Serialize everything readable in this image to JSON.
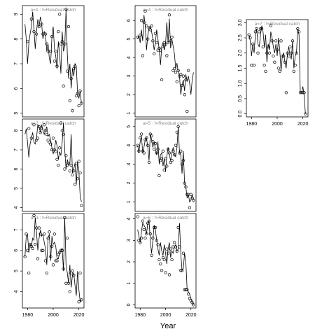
{
  "xlabel": "Year",
  "chart_data": [
    {
      "type": "line",
      "label": "a=1 : f=Residual catch",
      "show_xaxis": false,
      "color": "#000000",
      "x": [
        1978,
        1979,
        1980,
        1981,
        1982,
        1983,
        1984,
        1985,
        1986,
        1987,
        1988,
        1989,
        1990,
        1991,
        1992,
        1993,
        1994,
        1995,
        1996,
        1997,
        1998,
        1999,
        2000,
        2001,
        2002,
        2003,
        2004,
        2005,
        2006,
        2007,
        2008,
        2009,
        2010,
        2011,
        2012,
        2013,
        2014,
        2015,
        2016,
        2017,
        2018,
        2019,
        2020,
        2021,
        2022
      ],
      "xlim": [
        1976,
        2024
      ],
      "xticks": [
        1980,
        2000,
        2020
      ],
      "ylim": [
        4.85,
        9.35
      ],
      "yticks": [
        5,
        6,
        7,
        8,
        9
      ],
      "series": [
        {
          "style": "line",
          "values": [
            8.6,
            8.0,
            7.0,
            7.8,
            8.2,
            8.5,
            9.1,
            8.4,
            7.6,
            8.3,
            8.8,
            8.5,
            8.9,
            8.6,
            8.0,
            8.3,
            8.2,
            7.5,
            7.8,
            7.2,
            7.0,
            8.1,
            8.5,
            7.6,
            7.3,
            6.8,
            7.9,
            7.4,
            6.6,
            8.3,
            7.5,
            7.7,
            9.2,
            7.4,
            6.4,
            7.0,
            6.0,
            6.8,
            6.5,
            7.0,
            6.9,
            5.8,
            5.6,
            5.9,
            5.4
          ]
        },
        {
          "style": "points",
          "values": [
            null,
            null,
            7.9,
            null,
            null,
            8.8,
            null,
            8.3,
            null,
            8.2,
            null,
            8.5,
            null,
            8.6,
            8.2,
            null,
            8.2,
            7.8,
            7.5,
            null,
            7.5,
            8.1,
            null,
            7.1,
            7.5,
            6.9,
            8.3,
            9.0,
            7.8,
            7.9,
            6.1,
            7.8,
            9.2,
            6.7,
            8.5,
            5.5,
            6.4,
            5.1,
            6.8,
            6.9,
            5.7,
            5.8,
            5.3,
            5.9,
            5.4
          ]
        }
      ]
    },
    {
      "type": "line",
      "label": "a=2 : f=Residual catch",
      "show_xaxis": false,
      "color": "#000000",
      "x": [
        1978,
        1979,
        1980,
        1981,
        1982,
        1983,
        1984,
        1985,
        1986,
        1987,
        1988,
        1989,
        1990,
        1991,
        1992,
        1993,
        1994,
        1995,
        1996,
        1997,
        1998,
        1999,
        2000,
        2001,
        2002,
        2003,
        2004,
        2005,
        2006,
        2007,
        2008,
        2009,
        2010,
        2011,
        2012,
        2013,
        2014,
        2015,
        2016,
        2017,
        2018,
        2019,
        2020,
        2021,
        2022
      ],
      "xlim": [
        1976,
        2024
      ],
      "xticks": [
        1980,
        2000,
        2020
      ],
      "ylim": [
        3.8,
        8.6
      ],
      "yticks": [
        4,
        5,
        6,
        7,
        8
      ],
      "series": [
        {
          "style": "line",
          "values": [
            7.8,
            8.1,
            7.4,
            6.6,
            7.3,
            7.6,
            7.9,
            7.4,
            7.3,
            7.6,
            8.3,
            8.2,
            7.9,
            8.3,
            8.0,
            7.8,
            8.0,
            8.2,
            7.7,
            7.8,
            7.5,
            7.1,
            6.8,
            7.0,
            7.5,
            7.2,
            6.5,
            6.9,
            6.7,
            7.4,
            8.4,
            7.0,
            6.0,
            6.5,
            6.2,
            6.3,
            7.8,
            5.8,
            6.0,
            6.3,
            5.2,
            6.4,
            5.9,
            4.6,
            4.3
          ]
        },
        {
          "style": "points",
          "values": [
            null,
            null,
            null,
            8.1,
            null,
            7.6,
            null,
            8.3,
            null,
            7.5,
            7.6,
            8.2,
            7.9,
            8.1,
            null,
            8.3,
            8.0,
            7.8,
            7.5,
            7.4,
            7.3,
            7.0,
            7.6,
            7.0,
            6.9,
            6.5,
            6.2,
            7.1,
            8.4,
            8.0,
            7.8,
            6.0,
            6.7,
            6.2,
            6.3,
            5.9,
            6.2,
            5.7,
            5.9,
            5.2,
            6.3,
            5.5,
            6.4,
            5.8,
            4.1
          ]
        }
      ]
    },
    {
      "type": "line",
      "label": "a=3 : f=Residual catch",
      "show_xaxis": true,
      "color": "#000000",
      "x": [
        1978,
        1979,
        1980,
        1981,
        1982,
        1983,
        1984,
        1985,
        1986,
        1987,
        1988,
        1989,
        1990,
        1991,
        1992,
        1993,
        1994,
        1995,
        1996,
        1997,
        1998,
        1999,
        2000,
        2001,
        2002,
        2003,
        2004,
        2005,
        2006,
        2007,
        2008,
        2009,
        2010,
        2011,
        2012,
        2013,
        2014,
        2015,
        2016,
        2017,
        2018,
        2019,
        2020,
        2021,
        2022
      ],
      "xlim": [
        1976,
        2024
      ],
      "xticks": [
        1980,
        2000,
        2020
      ],
      "ylim": [
        3.2,
        7.8
      ],
      "yticks": [
        4,
        5,
        6,
        7
      ],
      "series": [
        {
          "style": "line",
          "values": [
            5.7,
            6.7,
            6.8,
            5.9,
            6.3,
            6.2,
            6.6,
            6.5,
            7.6,
            6.9,
            6.0,
            6.6,
            7.0,
            6.7,
            6.8,
            6.4,
            6.1,
            5.3,
            6.6,
            6.8,
            5.5,
            6.7,
            6.3,
            6.4,
            6.2,
            5.6,
            5.6,
            5.9,
            6.0,
            6.1,
            5.0,
            7.6,
            5.3,
            4.9,
            4.4,
            5.3,
            4.2,
            4.8,
            4.9,
            4.3,
            3.8,
            5.0,
            4.1,
            3.5,
            3.6
          ]
        },
        {
          "style": "points",
          "values": [
            5.7,
            6.8,
            6.0,
            4.9,
            6.3,
            6.2,
            6.1,
            7.7,
            6.3,
            7.1,
            5.6,
            7.1,
            6.8,
            6.0,
            6.0,
            6.8,
            5.5,
            4.9,
            6.6,
            6.9,
            5.7,
            6.2,
            5.3,
            6.8,
            5.5,
            5.5,
            5.8,
            5.9,
            6.0,
            6.0,
            5.1,
            7.6,
            4.4,
            6.6,
            4.4,
            4.0,
            4.9,
            5.0,
            4.8,
            null,
            null,
            null,
            3.5,
            4.9,
            3.6
          ]
        }
      ]
    },
    {
      "type": "line",
      "label": "a=4 : f=Residual catch",
      "show_xaxis": false,
      "color": "#000000",
      "x": [
        1978,
        1979,
        1980,
        1981,
        1982,
        1983,
        1984,
        1985,
        1986,
        1987,
        1988,
        1989,
        1990,
        1991,
        1992,
        1993,
        1994,
        1995,
        1996,
        1997,
        1998,
        1999,
        2000,
        2001,
        2002,
        2003,
        2004,
        2005,
        2006,
        2007,
        2008,
        2009,
        2010,
        2011,
        2012,
        2013,
        2014,
        2015,
        2016,
        2017,
        2018,
        2019,
        2020,
        2021,
        2022
      ],
      "xlim": [
        1976,
        2024
      ],
      "xticks": [
        1980,
        2000,
        2020
      ],
      "ylim": [
        0.8,
        6.8
      ],
      "yticks": [
        1,
        2,
        3,
        4,
        5,
        6
      ],
      "series": [
        {
          "style": "line",
          "values": [
            5.0,
            5.2,
            4.8,
            5.5,
            4.9,
            6.3,
            5.7,
            4.4,
            5.2,
            5.6,
            5.7,
            5.4,
            5.0,
            4.4,
            4.8,
            5.5,
            5.0,
            4.4,
            3.6,
            4.6,
            4.8,
            4.4,
            4.7,
            5.9,
            4.8,
            6.1,
            4.5,
            5.0,
            4.6,
            4.2,
            3.4,
            3.7,
            3.2,
            3.0,
            2.0,
            2.5,
            2.8,
            2.2,
            3.1,
            2.7,
            3.0,
            2.6,
            2.0,
            2.8,
            3.2
          ]
        },
        {
          "style": "points",
          "values": [
            5.1,
            null,
            5.2,
            6.0,
            4.1,
            5.9,
            6.5,
            5.7,
            5.0,
            5.6,
            5.5,
            5.7,
            4.9,
            4.2,
            5.3,
            4.8,
            4.4,
            4.5,
            4.4,
            2.8,
            4.6,
            4.8,
            4.7,
            4.1,
            4.8,
            6.3,
            4.9,
            5.1,
            3.3,
            3.4,
            3.2,
            2.7,
            3.3,
            3.0,
            3.1,
            2.5,
            3.0,
            2.0,
            2.8,
            1.1,
            3.3,
            null,
            null,
            null,
            null
          ]
        }
      ]
    },
    {
      "type": "line",
      "label": "a=5 : f=Residual catch",
      "show_xaxis": false,
      "color": "#000000",
      "x": [
        1978,
        1979,
        1980,
        1981,
        1982,
        1983,
        1984,
        1985,
        1986,
        1987,
        1988,
        1989,
        1990,
        1991,
        1992,
        1993,
        1994,
        1995,
        1996,
        1997,
        1998,
        1999,
        2000,
        2001,
        2002,
        2003,
        2004,
        2005,
        2006,
        2007,
        2008,
        2009,
        2010,
        2011,
        2012,
        2013,
        2014,
        2015,
        2016,
        2017,
        2018,
        2019,
        2020,
        2021,
        2022
      ],
      "xlim": [
        1976,
        2024
      ],
      "xticks": [
        1980,
        2000,
        2020
      ],
      "ylim": [
        0.5,
        5.4
      ],
      "yticks": [
        1,
        2,
        3,
        4,
        5
      ],
      "series": [
        {
          "style": "line",
          "values": [
            4.0,
            3.6,
            4.2,
            4.5,
            3.6,
            3.9,
            4.3,
            4.4,
            3.9,
            3.2,
            4.6,
            4.3,
            3.9,
            4.2,
            3.8,
            3.5,
            4.2,
            3.0,
            3.5,
            3.6,
            2.9,
            3.3,
            2.6,
            3.4,
            3.9,
            3.5,
            3.2,
            3.6,
            3.9,
            3.5,
            3.4,
            3.9,
            5.0,
            3.6,
            3.5,
            2.5,
            3.7,
            2.0,
            1.8,
            1.2,
            1.4,
            1.0,
            1.1,
            1.4,
            1.1
          ]
        },
        {
          "style": "points",
          "values": [
            4.0,
            3.7,
            4.4,
            4.6,
            3.7,
            3.6,
            4.3,
            4.4,
            4.0,
            3.1,
            4.6,
            4.5,
            4.2,
            3.8,
            4.1,
            3.6,
            3.8,
            2.4,
            3.2,
            3.3,
            3.7,
            2.7,
            3.3,
            2.9,
            3.8,
            3.6,
            3.1,
            3.2,
            3.7,
            3.5,
            4.0,
            4.7,
            5.0,
            3.6,
            3.7,
            3.0,
            3.2,
            2.0,
            1.8,
            1.4,
            1.4,
            0.7,
            1.4,
            1.2,
            1.1
          ]
        }
      ]
    },
    {
      "type": "line",
      "label": "a=6 : f=Residual catch",
      "show_xaxis": true,
      "color": "#000000",
      "x": [
        1978,
        1979,
        1980,
        1981,
        1982,
        1983,
        1984,
        1985,
        1986,
        1987,
        1988,
        1989,
        1990,
        1991,
        1992,
        1993,
        1994,
        1995,
        1996,
        1997,
        1998,
        1999,
        2000,
        2001,
        2002,
        2003,
        2004,
        2005,
        2006,
        2007,
        2008,
        2009,
        2010,
        2011,
        2012,
        2013,
        2014,
        2015,
        2016,
        2017,
        2018,
        2019,
        2020,
        2021,
        2022
      ],
      "xlim": [
        1976,
        2024
      ],
      "xticks": [
        1980,
        2000,
        2020
      ],
      "ylim": [
        -0.15,
        4.25
      ],
      "yticks": [
        0,
        1,
        2,
        3,
        4
      ],
      "series": [
        {
          "style": "line",
          "values": [
            3.5,
            3.2,
            2.9,
            3.4,
            3.8,
            3.7,
            3.6,
            3.3,
            3.8,
            3.9,
            3.0,
            2.4,
            3.0,
            3.7,
            3.5,
            3.0,
            2.6,
            2.3,
            2.9,
            2.5,
            2.3,
            2.8,
            2.4,
            1.9,
            2.6,
            2.9,
            2.2,
            2.5,
            2.4,
            2.7,
            2.8,
            2.5,
            2.6,
            3.8,
            2.4,
            1.6,
            1.7,
            2.4,
            2.0,
            0.7,
            0.6,
            0.5,
            0.3,
            0.1,
            0.0
          ]
        },
        {
          "style": "points",
          "values": [
            4.1,
            3.0,
            2.9,
            3.1,
            3.9,
            3.5,
            3.1,
            3.3,
            3.8,
            3.9,
            3.3,
            2.3,
            3.1,
            3.6,
            3.6,
            3.0,
            2.8,
            2.1,
            1.9,
            1.6,
            2.2,
            2.1,
            1.5,
            2.6,
            2.4,
            1.4,
            2.6,
            2.1,
            2.7,
            2.9,
            2.7,
            2.5,
            3.6,
            2.7,
            1.6,
            1.6,
            2.4,
            0.7,
            0.7,
            0.7,
            0.5,
            0.3,
            0.2,
            0.1,
            0.0
          ]
        }
      ]
    },
    {
      "type": "line",
      "label": "a=7 : f=Residual catch",
      "show_xaxis": true,
      "color": "#000000",
      "x": [
        1978,
        1979,
        1980,
        1981,
        1982,
        1983,
        1984,
        1985,
        1986,
        1987,
        1988,
        1989,
        1990,
        1991,
        1992,
        1993,
        1994,
        1995,
        1996,
        1997,
        1998,
        1999,
        2000,
        2001,
        2002,
        2003,
        2004,
        2005,
        2006,
        2007,
        2008,
        2009,
        2010,
        2011,
        2012,
        2013,
        2014,
        2015,
        2016,
        2017,
        2018,
        2019,
        2020,
        2021,
        2022
      ],
      "xlim": [
        1976,
        2024
      ],
      "xticks": [
        1980,
        2000,
        2020
      ],
      "ylim": [
        -0.1,
        3.1
      ],
      "yticks": [
        {
          "value": 0,
          "label": "0.0"
        },
        {
          "value": 0.5,
          "label": "0.5"
        },
        {
          "value": 1,
          "label": "1.0"
        },
        {
          "value": 1.5,
          "label": "1.5"
        },
        {
          "value": 2,
          "label": "2.0"
        },
        {
          "value": 2.5,
          "label": "2.5"
        },
        {
          "value": 3,
          "label": "3.0"
        }
      ],
      "series": [
        {
          "style": "line",
          "values": [
            2.6,
            2.4,
            1.9,
            2.3,
            2.0,
            2.6,
            2.8,
            2.3,
            2.2,
            2.6,
            2.9,
            2.7,
            2.2,
            2.6,
            1.7,
            2.3,
            2.1,
            2.7,
            2.5,
            2.2,
            2.0,
            2.3,
            1.9,
            2.5,
            2.1,
            1.4,
            1.9,
            2.0,
            1.7,
            1.5,
            2.0,
            2.2,
            1.9,
            1.8,
            2.4,
            1.5,
            1.9,
            2.0,
            2.8,
            2.6,
            0.7,
            0.7,
            0.9,
            0.6,
            0.0
          ]
        },
        {
          "style": "points",
          "values": [
            2.6,
            2.5,
            1.6,
            2.3,
            1.6,
            2.7,
            2.8,
            2.0,
            2.7,
            2.8,
            2.8,
            2.2,
            1.6,
            1.4,
            2.0,
            2.2,
            2.0,
            2.9,
            2.4,
            1.9,
            1.7,
            2.4,
            2.1,
            1.5,
            1.4,
            2.4,
            1.9,
            1.9,
            1.7,
            0.7,
            2.0,
            1.9,
            2.2,
            2.0,
            2.4,
            1.4,
            1.6,
            2.0,
            2.8,
            2.7,
            0.7,
            0.7,
            0.7,
            0.7,
            0.0
          ]
        }
      ]
    }
  ]
}
